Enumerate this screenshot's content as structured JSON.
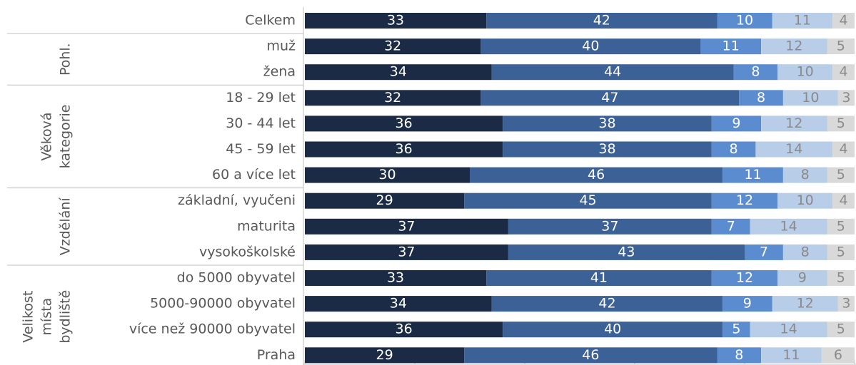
{
  "chart_data": {
    "type": "stacked_barh",
    "categories": [
      "Celkem",
      "muž",
      "žena",
      "18 - 29 let",
      "30 - 44 let",
      "45 - 59 let",
      "60 a více let",
      "základní, vyučeni",
      "maturita",
      "vysokoškolské",
      "do 5000 obyvatel",
      "5000-90000 obyvatel",
      "více než 90000 obyvatel",
      "Praha"
    ],
    "groups": [
      {
        "label": [
          "Pohl."
        ]
      },
      {
        "label": [
          "Věková",
          "kategorie"
        ]
      },
      {
        "label": [
          "Vzdělání"
        ]
      },
      {
        "label": [
          "Velikost",
          "místa",
          "bydliště"
        ]
      }
    ],
    "series": [
      {
        "color": "#1c2b45",
        "label_color": "#ffffff",
        "values": [
          33,
          32,
          34,
          32,
          36,
          36,
          30,
          29,
          37,
          37,
          33,
          34,
          36,
          29
        ]
      },
      {
        "color": "#3b6196",
        "label_color": "#ffffff",
        "values": [
          42,
          40,
          44,
          47,
          38,
          38,
          46,
          45,
          37,
          43,
          41,
          42,
          40,
          46
        ]
      },
      {
        "color": "#5a8ccf",
        "label_color": "#ffffff",
        "values": [
          10,
          11,
          8,
          8,
          9,
          8,
          11,
          12,
          7,
          7,
          12,
          9,
          5,
          8
        ]
      },
      {
        "color": "#b8cde7",
        "label_color": "#8a8a8a",
        "values": [
          11,
          12,
          10,
          10,
          12,
          14,
          8,
          10,
          14,
          8,
          9,
          12,
          14,
          11
        ]
      },
      {
        "color": "#d9d9d9",
        "label_color": "#8a8a8a",
        "values": [
          4,
          5,
          4,
          3,
          5,
          4,
          5,
          4,
          5,
          5,
          5,
          3,
          5,
          6
        ]
      }
    ],
    "xlim": [
      0,
      100
    ],
    "xticks": [
      0,
      20,
      40,
      60,
      80,
      100
    ]
  }
}
